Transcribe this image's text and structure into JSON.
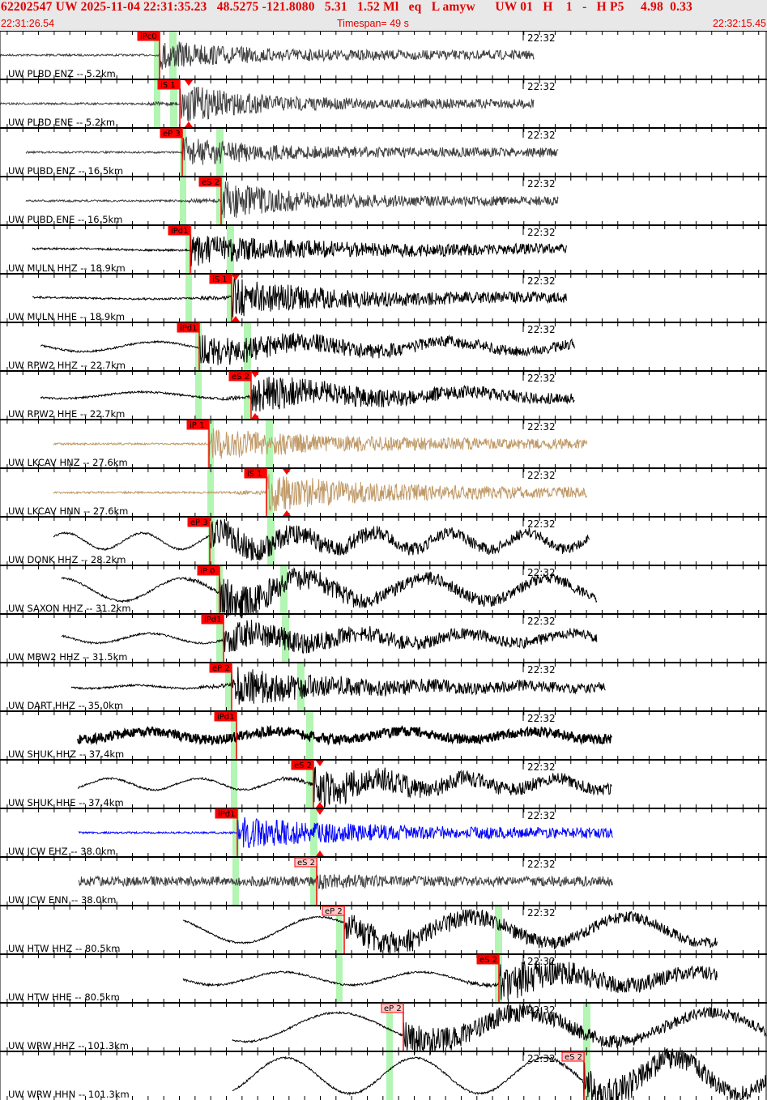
{
  "header": {
    "event_line": "62202547 UW 2025-11-04 22:31:35.23   48.5275 -121.8080   5.31   1.52 Ml   eq   L amyw      UW 01   H    1   -   H P5     4.98  0.33",
    "start_time": "22:31:26.54",
    "timespan": "Timespan=  49 s",
    "end_time": "22:32:15.45",
    "text_color": "#e00000"
  },
  "minute_mark": "22:32",
  "colors": {
    "pick": "#ff0000",
    "pick_light": "#ffc8c8",
    "window": "#b3f5b3",
    "trace": "#000000",
    "trace_gray": "#404040",
    "trace_tan": "#c09a68",
    "trace_blue": "#0000ff"
  },
  "traces": [
    {
      "label": "UW PLBD ENZ -- 5.2km",
      "pick": "iPc0"
    },
    {
      "label": "UW PLBD ENE -- 5.2km",
      "pick": "iS 1"
    },
    {
      "label": "UW PUBD ENZ -- 16.5km",
      "pick": "eP 3"
    },
    {
      "label": "UW PUBD ENE -- 16.5km",
      "pick": "eS 2"
    },
    {
      "label": "UW MULN HHZ -- 18.9km",
      "pick": "iPd1"
    },
    {
      "label": "UW MULN HHE -- 18.9km",
      "pick": "iS 1"
    },
    {
      "label": "UW RPW2 HHZ -- 22.7km",
      "pick": "iPd1"
    },
    {
      "label": "UW RPW2 HHE -- 22.7km",
      "pick": "eS 2"
    },
    {
      "label": "UW LKCAV HNZ -- 27.6km",
      "pick": "iP 1"
    },
    {
      "label": "UW LKCAV HNN -- 27.6km",
      "pick": "iS 1"
    },
    {
      "label": "UW DONK HHZ -- 28.2km",
      "pick": "eP 3"
    },
    {
      "label": "UW SAXON HHZ -- 31.2km",
      "pick": "iP 0"
    },
    {
      "label": "UW MBW2 HHZ -- 31.5km",
      "pick": "iPd1"
    },
    {
      "label": "UW DART HHZ -- 35.0km",
      "pick": "eP 2"
    },
    {
      "label": "UW SHUK HHZ -- 37.4km",
      "pick": "iPd1"
    },
    {
      "label": "UW SHUK HHE -- 37.4km",
      "pick": "eS 2"
    },
    {
      "label": "UW JCW EHZ -- 38.0km",
      "pick": "iPd1"
    },
    {
      "label": "UW JCW ENN -- 38.0km",
      "pick": "eS 2"
    },
    {
      "label": "UW HTW HHZ -- 80.5km",
      "pick": "eP 2"
    },
    {
      "label": "UW HTW HHE -- 80.5km",
      "pick": "eS 2"
    },
    {
      "label": "UW WRW HHZ -- 101.3km",
      "pick": "eP 2"
    },
    {
      "label": "UW WRW HHN -- 101.3km",
      "pick": "eS 2"
    }
  ]
}
